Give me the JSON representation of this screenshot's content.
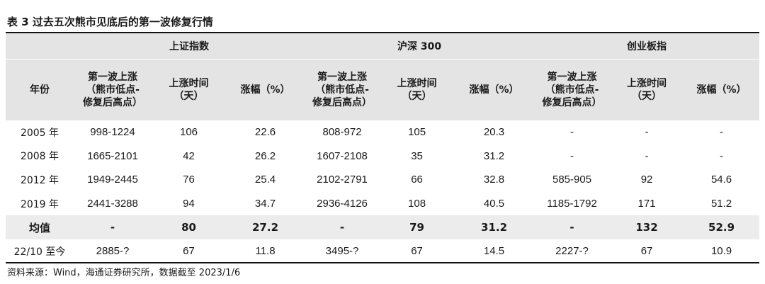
{
  "title": "表 3  过去五次熊市见底后的第一波修复行情",
  "groups": [
    "上证指数",
    "沪深 300",
    "创业板指"
  ],
  "columns": {
    "year": "年份",
    "range": "第一波上涨（熊市低点-修复后高点）",
    "range_cyb": "第一波上涨（熊市低点-修复后高点）",
    "days": "上涨时间（天）",
    "pct": "涨幅（%）"
  },
  "rows": [
    {
      "year": "2005 年",
      "cells": [
        "998-1224",
        "106",
        "22.6",
        "808-972",
        "105",
        "20.3",
        "-",
        "-",
        "-"
      ]
    },
    {
      "year": "2008 年",
      "cells": [
        "1665-2101",
        "42",
        "26.2",
        "1607-2108",
        "35",
        "31.2",
        "-",
        "-",
        "-"
      ]
    },
    {
      "year": "2012 年",
      "cells": [
        "1949-2445",
        "76",
        "25.4",
        "2102-2791",
        "66",
        "32.8",
        "585-905",
        "92",
        "54.6"
      ]
    },
    {
      "year": "2019 年",
      "cells": [
        "2441-3288",
        "94",
        "34.7",
        "2936-4126",
        "108",
        "40.5",
        "1185-1792",
        "171",
        "51.2"
      ]
    },
    {
      "year": "均值",
      "cells": [
        "-",
        "80",
        "27.2",
        "-",
        "79",
        "31.2",
        "-",
        "132",
        "52.9"
      ]
    },
    {
      "year": "22/10 至今",
      "cells": [
        "2885-?",
        "67",
        "11.8",
        "3495-?",
        "67",
        "14.5",
        "2227-?",
        "67",
        "10.9"
      ]
    }
  ],
  "source": "资料来源：Wind，海通证券研究所，数据截至 2023/1/6"
}
